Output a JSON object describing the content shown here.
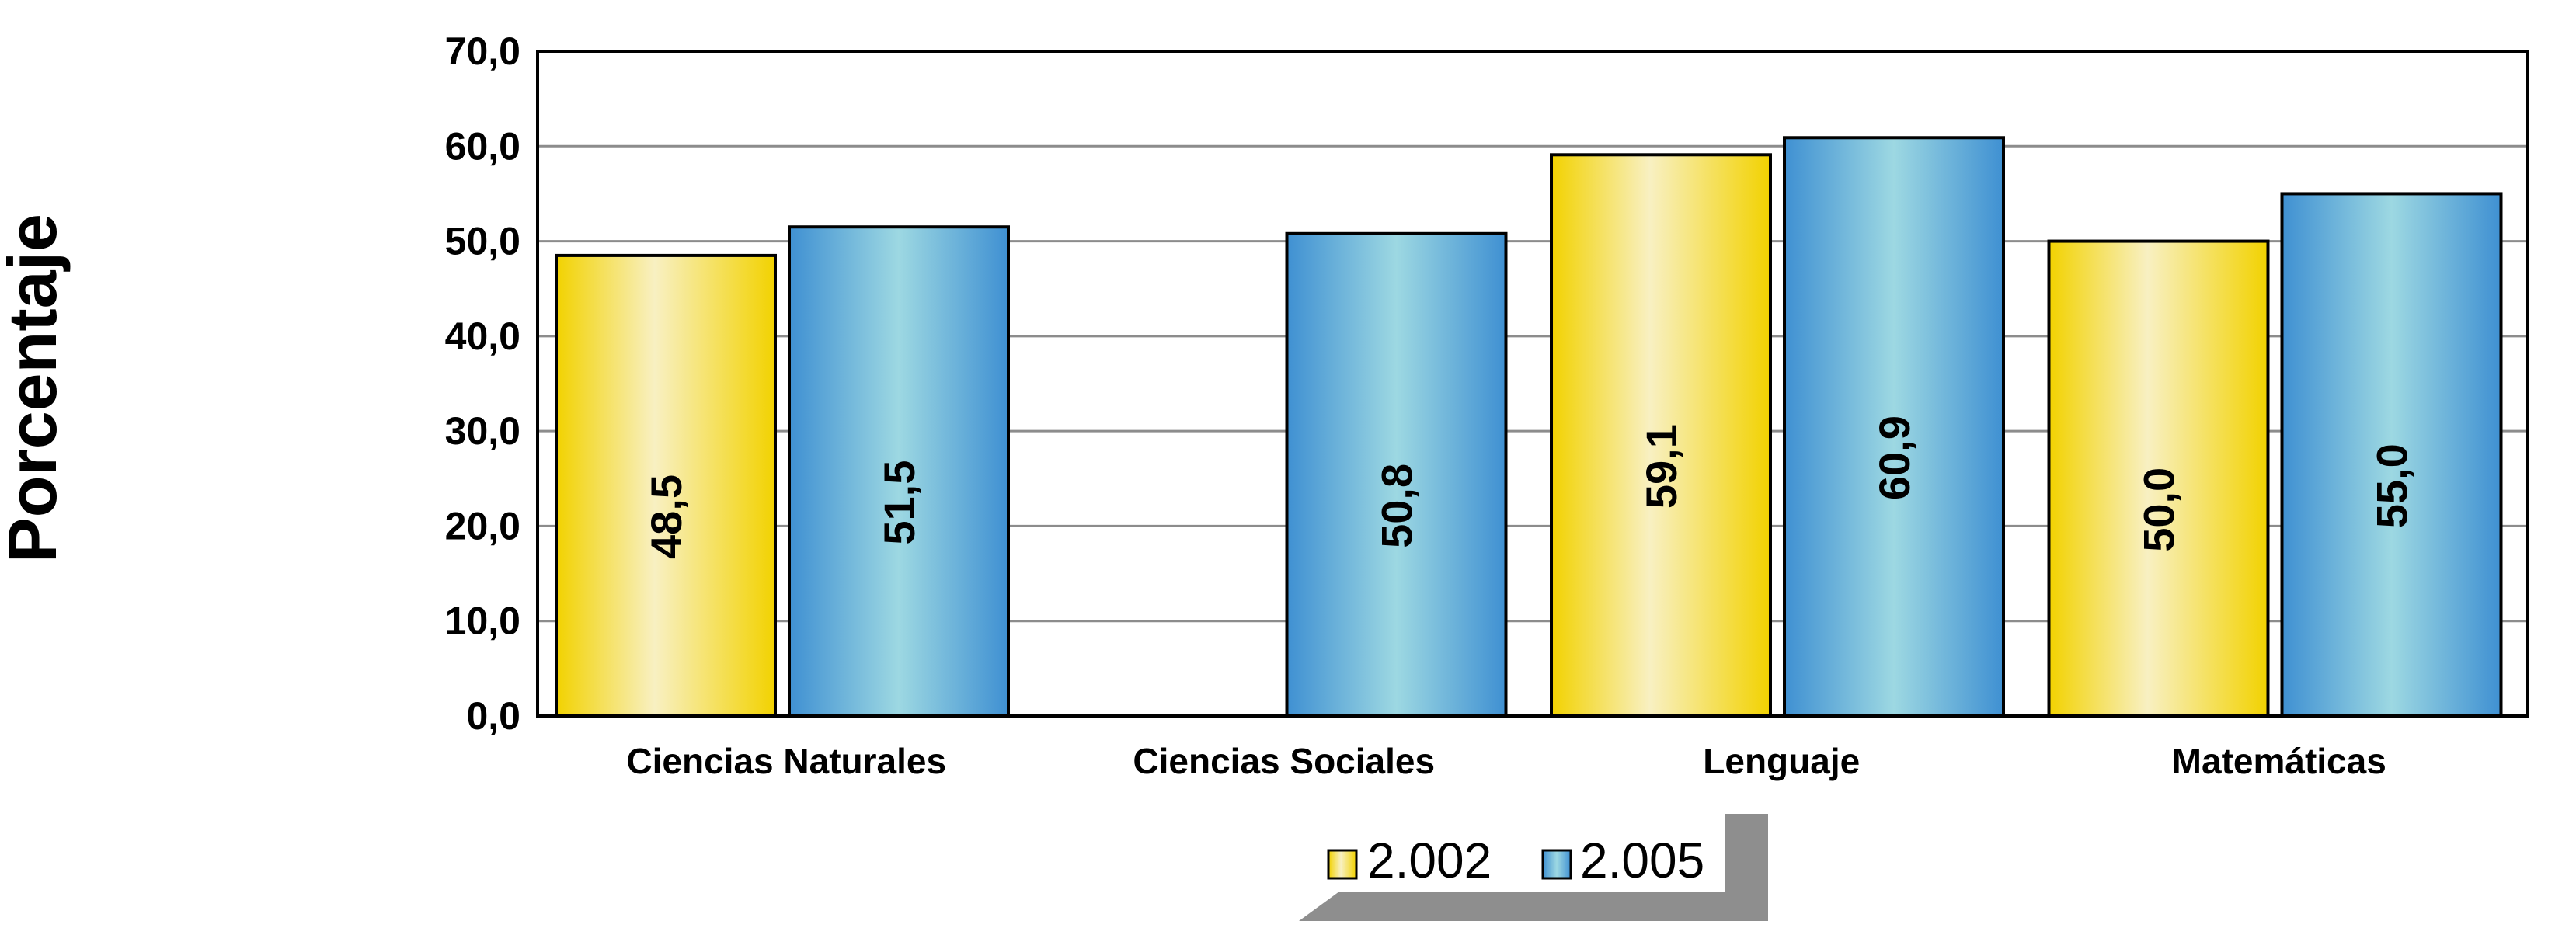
{
  "chart_data": {
    "type": "bar",
    "title": "",
    "xlabel": "",
    "ylabel": "Porcentaje",
    "ylim": [
      0,
      70
    ],
    "y_tick_step": 10,
    "y_tick_labels": [
      "0,0",
      "10,0",
      "20,0",
      "30,0",
      "40,0",
      "50,0",
      "60,0",
      "70,0"
    ],
    "grid": true,
    "legend_position": "bottom-center",
    "categories": [
      "Ciencias Naturales",
      "Ciencias Sociales",
      "Lenguaje",
      "Matemáticas"
    ],
    "series": [
      {
        "name": "2.002",
        "color": "#F2D200",
        "values": [
          48.5,
          null,
          59.1,
          50.0
        ],
        "labels": [
          "48,5",
          "",
          "59,1",
          "50,0"
        ]
      },
      {
        "name": "2.005",
        "color": "#4A9AD6",
        "values": [
          51.5,
          50.8,
          60.9,
          55.0
        ],
        "labels": [
          "51,5",
          "50,8",
          "60,9",
          "55,0"
        ]
      }
    ]
  }
}
